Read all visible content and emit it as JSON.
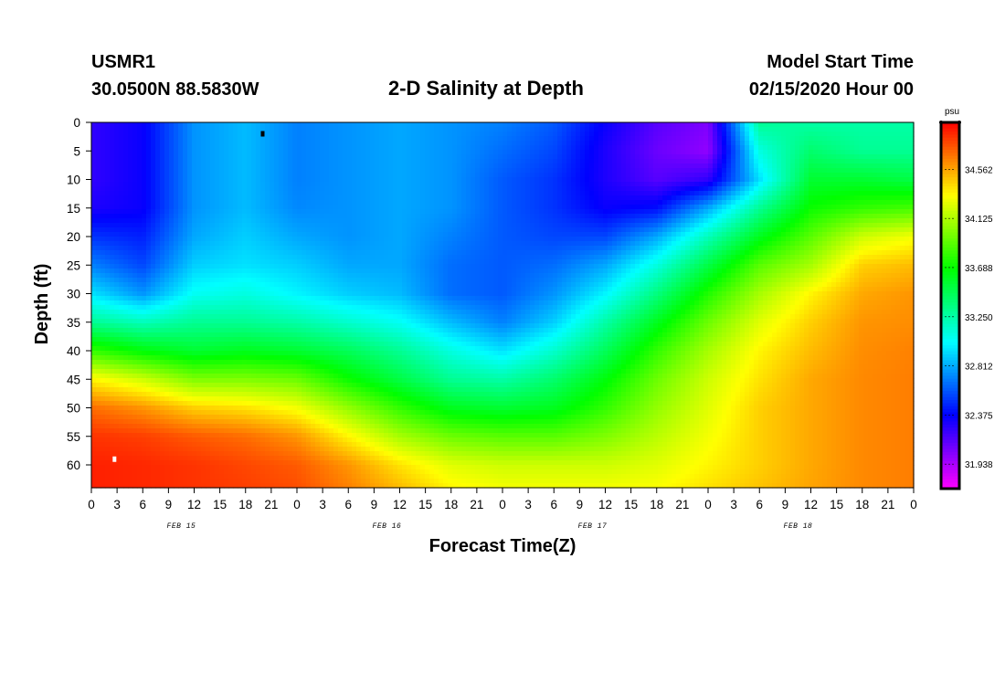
{
  "header": {
    "station": "USMR1",
    "coords": "30.0500N 88.5830W",
    "title": "2-D Salinity at Depth",
    "model_start_label": "Model Start Time",
    "model_start_value": "02/15/2020 Hour 00"
  },
  "chart_data": {
    "type": "heatmap",
    "title": "2-D Salinity at Depth",
    "xlabel": "Forecast Time(Z)",
    "ylabel": "Depth (ft)",
    "x_range_hours": [
      0,
      96
    ],
    "x_tick_step_hours": 3,
    "x_tick_labels": [
      "0",
      "3",
      "6",
      "9",
      "12",
      "15",
      "18",
      "21",
      "0",
      "3",
      "6",
      "9",
      "12",
      "15",
      "18",
      "21",
      "0",
      "3",
      "6",
      "9",
      "12",
      "15",
      "18",
      "21",
      "0",
      "3",
      "6",
      "9",
      "12",
      "15",
      "18",
      "21",
      "0"
    ],
    "day_labels": [
      {
        "label": "FEB 15",
        "hour": 10.5
      },
      {
        "label": "FEB 16",
        "hour": 34.5
      },
      {
        "label": "FEB 17",
        "hour": 58.5
      },
      {
        "label": "FEB 18",
        "hour": 82.5
      }
    ],
    "y_range_ft": [
      0,
      64
    ],
    "y_ticks": [
      0,
      5,
      10,
      15,
      20,
      25,
      30,
      35,
      40,
      45,
      50,
      55,
      60
    ],
    "colorbar": {
      "unit": "psu",
      "min": 31.72,
      "max": 34.98,
      "tick_values": [
        31.938,
        32.375,
        32.812,
        33.25,
        33.688,
        34.125,
        34.562
      ],
      "tick_labels": [
        "31.938",
        "32.375",
        "32.812",
        "33.250",
        "33.688",
        "34.125",
        "34.562"
      ]
    },
    "salinity_psu": {
      "hours": [
        0,
        6,
        12,
        18,
        24,
        30,
        36,
        42,
        48,
        54,
        60,
        66,
        72,
        78,
        84,
        90,
        96
      ],
      "depths_ft": [
        0,
        5,
        10,
        15,
        20,
        25,
        30,
        35,
        40,
        45,
        50,
        55,
        60,
        64
      ],
      "values": [
        [
          32.25,
          32.35,
          32.75,
          32.85,
          32.7,
          32.75,
          32.8,
          32.75,
          32.7,
          32.6,
          32.35,
          32.15,
          32.05,
          33.3,
          33.25,
          33.25,
          33.25
        ],
        [
          32.25,
          32.35,
          32.75,
          32.85,
          32.7,
          32.75,
          32.8,
          32.75,
          32.65,
          32.55,
          32.3,
          32.1,
          32.0,
          33.1,
          33.4,
          33.3,
          33.3
        ],
        [
          32.25,
          32.35,
          32.75,
          32.85,
          32.7,
          32.75,
          32.8,
          32.75,
          32.6,
          32.5,
          32.3,
          32.15,
          32.25,
          32.95,
          33.55,
          33.55,
          33.5
        ],
        [
          32.3,
          32.35,
          32.75,
          32.85,
          32.72,
          32.75,
          32.8,
          32.75,
          32.6,
          32.5,
          32.35,
          32.4,
          32.8,
          33.3,
          33.7,
          33.8,
          33.85
        ],
        [
          32.5,
          32.45,
          32.8,
          32.9,
          32.8,
          32.75,
          32.8,
          32.7,
          32.6,
          32.55,
          32.55,
          32.8,
          33.2,
          33.6,
          33.9,
          34.2,
          34.3
        ],
        [
          32.7,
          32.55,
          32.9,
          32.95,
          32.9,
          32.8,
          32.8,
          32.65,
          32.6,
          32.65,
          32.8,
          33.1,
          33.5,
          33.9,
          34.1,
          34.45,
          34.5
        ],
        [
          32.95,
          32.75,
          33.05,
          33.1,
          33.0,
          32.9,
          32.85,
          32.65,
          32.6,
          32.75,
          33.0,
          33.35,
          33.75,
          34.1,
          34.35,
          34.55,
          34.6
        ],
        [
          33.3,
          33.2,
          33.3,
          33.3,
          33.25,
          33.15,
          33.05,
          32.85,
          32.7,
          32.9,
          33.25,
          33.6,
          33.95,
          34.25,
          34.45,
          34.6,
          34.62
        ],
        [
          33.8,
          33.65,
          33.55,
          33.6,
          33.55,
          33.45,
          33.3,
          33.1,
          32.95,
          33.15,
          33.45,
          33.8,
          34.1,
          34.35,
          34.5,
          34.62,
          34.65
        ],
        [
          34.35,
          34.2,
          34.0,
          34.0,
          33.95,
          33.7,
          33.5,
          33.3,
          33.25,
          33.4,
          33.65,
          33.95,
          34.2,
          34.4,
          34.55,
          34.63,
          34.66
        ],
        [
          34.7,
          34.6,
          34.45,
          34.4,
          34.3,
          34.05,
          33.8,
          33.6,
          33.55,
          33.6,
          33.8,
          34.05,
          34.25,
          34.45,
          34.55,
          34.63,
          34.66
        ],
        [
          34.85,
          34.82,
          34.75,
          34.7,
          34.6,
          34.35,
          34.1,
          33.95,
          33.9,
          33.9,
          34.0,
          34.15,
          34.3,
          34.45,
          34.55,
          34.63,
          34.66
        ],
        [
          34.9,
          34.88,
          34.85,
          34.8,
          34.75,
          34.6,
          34.4,
          34.25,
          34.2,
          34.2,
          34.2,
          34.25,
          34.35,
          34.45,
          34.55,
          34.63,
          34.66
        ],
        [
          34.9,
          34.88,
          34.85,
          34.82,
          34.78,
          34.65,
          34.5,
          34.35,
          34.3,
          34.3,
          34.3,
          34.32,
          34.4,
          34.48,
          34.56,
          34.63,
          34.66
        ]
      ]
    },
    "markers": [
      {
        "hour": 20.0,
        "depth_ft": 2,
        "color": "#000000"
      },
      {
        "hour": 2.7,
        "depth_ft": 59,
        "color": "#ffffff"
      }
    ]
  }
}
